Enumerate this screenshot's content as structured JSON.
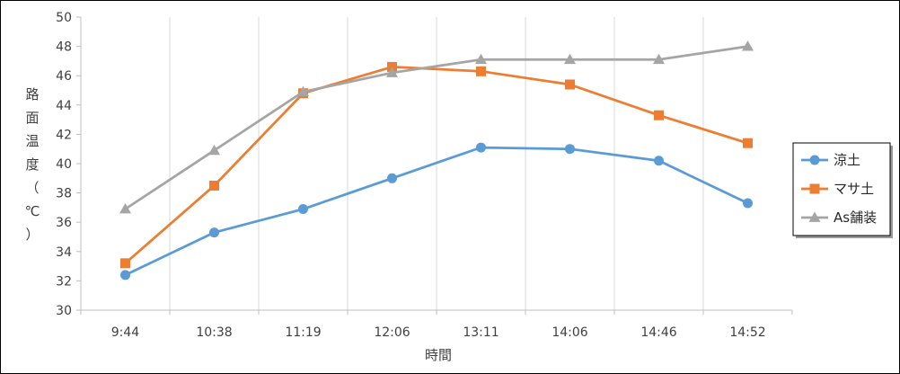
{
  "chart_data": {
    "type": "line",
    "categories": [
      "9:44",
      "10:38",
      "11:19",
      "12:06",
      "13:11",
      "14:06",
      "14:46",
      "14:52"
    ],
    "series": [
      {
        "name": "涼土",
        "color": "#5B9BD5",
        "marker": "circle",
        "values": [
          32.4,
          35.3,
          36.9,
          39.0,
          41.1,
          41.0,
          40.2,
          37.3
        ]
      },
      {
        "name": "マサ土",
        "color": "#ED7D31",
        "marker": "square",
        "values": [
          33.2,
          38.5,
          44.8,
          46.6,
          46.3,
          45.4,
          43.3,
          41.4
        ]
      },
      {
        "name": "As舗装",
        "color": "#A5A5A5",
        "marker": "triangle",
        "values": [
          36.9,
          40.9,
          44.9,
          46.2,
          47.1,
          47.1,
          47.1,
          48.0
        ]
      }
    ],
    "xlabel": "時間",
    "ylabel": [
      "路",
      "面",
      "温",
      "度",
      "（",
      "℃",
      "）"
    ],
    "ylim": [
      30,
      50
    ],
    "yticks": [
      "30",
      "32",
      "34",
      "36",
      "38",
      "40",
      "42",
      "44",
      "46",
      "48",
      "50"
    ],
    "grid": "vertical",
    "legend": "right"
  }
}
